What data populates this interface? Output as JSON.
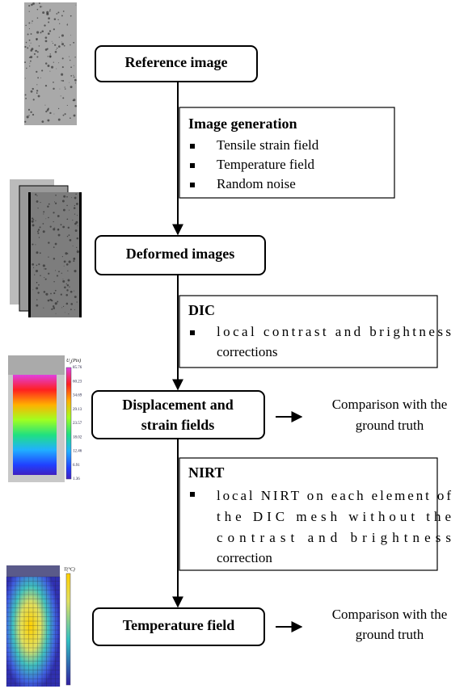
{
  "nodes": [
    {
      "label": [
        "Reference image"
      ]
    },
    {
      "label": [
        "Deformed images"
      ]
    },
    {
      "label": [
        "Displacement and",
        "strain fields"
      ]
    },
    {
      "label": [
        "Temperature field"
      ]
    }
  ],
  "steps": [
    {
      "title": "Image generation",
      "items": [
        [
          "Tensile strain field"
        ],
        [
          "Temperature field"
        ],
        [
          "Random noise"
        ]
      ]
    },
    {
      "title": "DIC",
      "items": [
        [
          "local contrast and brightness",
          "corrections"
        ]
      ]
    },
    {
      "title": "NIRT",
      "items": [
        [
          "local NIRT on each element of",
          "the DIC mesh without the",
          "contrast and brightness",
          "correction"
        ]
      ]
    }
  ],
  "comparisons": [
    [
      "Comparison with the",
      "ground truth"
    ],
    [
      "Comparison with the",
      "ground truth"
    ]
  ],
  "displacement_colorbar": {
    "symbol": "U",
    "subscript": "y",
    "unit": "(Pix)",
    "ticks": [
      "85.76",
      "60.23",
      "34.69",
      "29.13",
      "23.57",
      "18.02",
      "12.46",
      "6.91",
      "1.36"
    ]
  },
  "temperature_colorbar": {
    "label": "T(°C)"
  }
}
